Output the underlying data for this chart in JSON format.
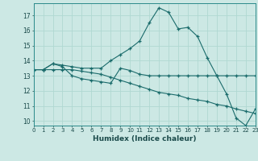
{
  "xlabel": "Humidex (Indice chaleur)",
  "bg_color": "#cce8e4",
  "grid_color": "#b0d8d2",
  "line_color": "#1a6b6b",
  "xlim": [
    0,
    23
  ],
  "ylim": [
    9.7,
    17.8
  ],
  "xticks": [
    0,
    1,
    2,
    3,
    4,
    5,
    6,
    7,
    8,
    9,
    10,
    11,
    12,
    13,
    14,
    15,
    16,
    17,
    18,
    19,
    20,
    21,
    22,
    23
  ],
  "yticks": [
    10,
    11,
    12,
    13,
    14,
    15,
    16,
    17
  ],
  "line1": [
    13.4,
    13.4,
    13.8,
    13.7,
    13.6,
    13.5,
    13.5,
    13.5,
    14.0,
    14.4,
    14.8,
    15.3,
    16.5,
    17.5,
    17.2,
    16.1,
    16.2,
    15.6,
    14.2,
    13.0,
    11.8,
    10.2,
    9.7,
    10.8
  ],
  "line2": [
    13.4,
    13.4,
    13.8,
    13.6,
    13.0,
    12.8,
    12.7,
    12.6,
    12.5,
    13.5,
    13.35,
    13.1,
    13.0,
    13.0,
    13.0,
    13.0,
    13.0,
    13.0,
    13.0,
    13.0,
    13.0,
    13.0,
    13.0,
    13.0
  ],
  "line3": [
    13.4,
    13.4,
    13.4,
    13.4,
    13.4,
    13.3,
    13.2,
    13.1,
    12.9,
    12.7,
    12.5,
    12.3,
    12.1,
    11.9,
    11.8,
    11.7,
    11.5,
    11.4,
    11.3,
    11.1,
    11.0,
    10.8,
    10.65,
    10.5
  ]
}
